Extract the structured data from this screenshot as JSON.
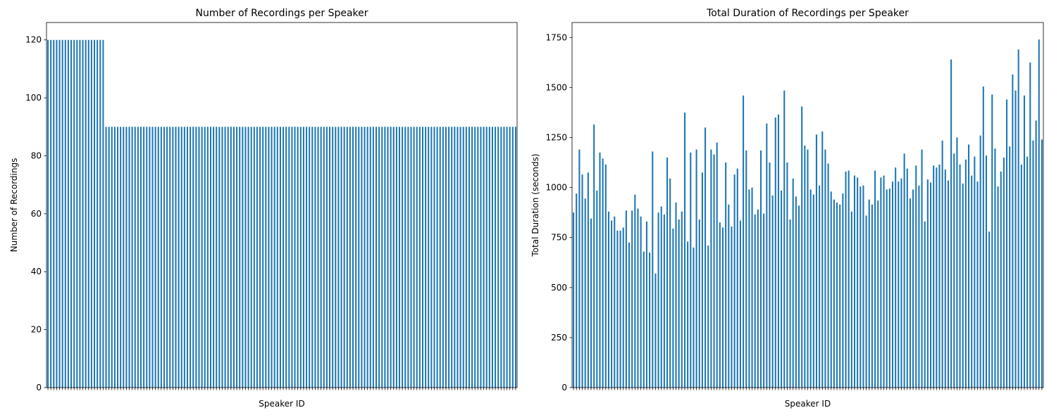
{
  "chart_data": [
    {
      "type": "bar",
      "title": "Number of Recordings per Speaker",
      "xlabel": "Speaker ID",
      "ylabel": "Number of Recordings",
      "ylim": [
        0,
        126
      ],
      "yticks": [
        0,
        20,
        40,
        60,
        80,
        100,
        120
      ],
      "grid": false,
      "legend": "none",
      "bar_color": "#1f77b4",
      "series": [
        {
          "values": [
            120,
            120,
            120,
            120,
            120,
            120,
            120,
            120,
            120,
            120,
            120,
            120,
            120,
            120,
            120,
            120,
            120,
            120,
            120,
            120,
            90,
            90,
            90,
            90,
            90,
            90,
            90,
            90,
            90,
            90,
            90,
            90,
            90,
            90,
            90,
            90,
            90,
            90,
            90,
            90,
            90,
            90,
            90,
            90,
            90,
            90,
            90,
            90,
            90,
            90,
            90,
            90,
            90,
            90,
            90,
            90,
            90,
            90,
            90,
            90,
            90,
            90,
            90,
            90,
            90,
            90,
            90,
            90,
            90,
            90,
            90,
            90,
            90,
            90,
            90,
            90,
            90,
            90,
            90,
            90,
            90,
            90,
            90,
            90,
            90,
            90,
            90,
            90,
            90,
            90,
            90,
            90,
            90,
            90,
            90,
            90,
            90,
            90,
            90,
            90,
            90,
            90,
            90,
            90,
            90,
            90,
            90,
            90,
            90,
            90,
            90,
            90,
            90,
            90,
            90,
            90,
            90,
            90,
            90,
            90,
            90,
            90,
            90,
            90,
            90,
            90,
            90,
            90,
            90,
            90,
            90,
            90,
            90,
            90,
            90,
            90,
            90,
            90,
            90,
            90,
            90,
            90,
            90,
            90,
            90,
            90,
            90,
            90,
            90,
            90,
            90,
            90,
            90,
            90,
            90,
            90,
            90,
            90,
            90,
            90,
            90,
            90
          ]
        }
      ]
    },
    {
      "type": "bar",
      "title": "Total Duration of Recordings per Speaker",
      "xlabel": "Speaker ID",
      "ylabel": "Total Duration (seconds)",
      "ylim": [
        0,
        1825
      ],
      "yticks": [
        0,
        250,
        500,
        750,
        1000,
        1250,
        1500,
        1750
      ],
      "grid": false,
      "legend": "none",
      "bar_color": "#1f77b4",
      "series": [
        {
          "values": [
            875,
            970,
            1190,
            1065,
            945,
            1075,
            845,
            1315,
            985,
            1175,
            1145,
            1115,
            880,
            835,
            855,
            785,
            785,
            800,
            885,
            725,
            885,
            965,
            895,
            855,
            680,
            830,
            675,
            1180,
            570,
            875,
            905,
            865,
            1150,
            1045,
            795,
            925,
            840,
            880,
            1375,
            730,
            1175,
            700,
            1190,
            840,
            1075,
            1300,
            710,
            1190,
            1165,
            1225,
            825,
            800,
            1125,
            915,
            805,
            1065,
            1095,
            835,
            1460,
            1185,
            990,
            1000,
            865,
            890,
            1185,
            870,
            1320,
            1125,
            960,
            1350,
            1365,
            985,
            1485,
            1125,
            840,
            1045,
            955,
            910,
            1405,
            1210,
            1190,
            990,
            965,
            1265,
            1010,
            1280,
            1190,
            1120,
            980,
            940,
            925,
            915,
            970,
            1080,
            1085,
            880,
            1060,
            1050,
            1005,
            1010,
            860,
            940,
            915,
            1085,
            935,
            1050,
            1060,
            990,
            995,
            1030,
            1100,
            1030,
            1045,
            1170,
            1095,
            945,
            990,
            1110,
            1010,
            1190,
            830,
            1040,
            1025,
            1110,
            1100,
            1115,
            1235,
            1090,
            1035,
            1640,
            1170,
            1250,
            1115,
            1020,
            1140,
            1215,
            1060,
            1155,
            1030,
            1260,
            1505,
            1160,
            780,
            1465,
            1195,
            1005,
            1080,
            1150,
            1440,
            1205,
            1565,
            1485,
            1690,
            1115,
            1460,
            1155,
            1625,
            1235,
            1335,
            1740,
            1240
          ]
        }
      ]
    }
  ]
}
